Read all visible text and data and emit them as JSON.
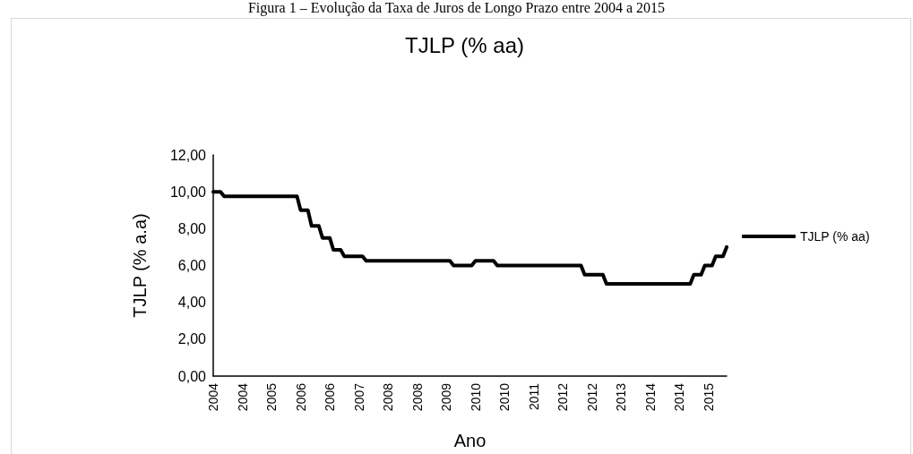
{
  "chart_data": {
    "type": "line",
    "title": "TJLP (% aa)",
    "xlabel": "Ano",
    "ylabel": "TJLP (% a.a)",
    "annotations": [
      "Figura 1 – Evolução da Taxa de Juros de Longo Prazo entre 2004 a 2015"
    ],
    "categories": [
      "2004",
      null,
      null,
      null,
      null,
      null,
      null,
      null,
      "2004",
      null,
      null,
      null,
      null,
      null,
      null,
      null,
      "2005",
      null,
      null,
      null,
      null,
      null,
      null,
      null,
      "2006",
      null,
      null,
      null,
      null,
      null,
      null,
      null,
      "2006",
      null,
      null,
      null,
      null,
      null,
      null,
      null,
      "2007",
      null,
      null,
      null,
      null,
      null,
      null,
      null,
      "2008",
      null,
      null,
      null,
      null,
      null,
      null,
      null,
      "2008",
      null,
      null,
      null,
      null,
      null,
      null,
      null,
      "2009",
      null,
      null,
      null,
      null,
      null,
      null,
      null,
      "2010",
      null,
      null,
      null,
      null,
      null,
      null,
      null,
      "2010",
      null,
      null,
      null,
      null,
      null,
      null,
      null,
      "2011",
      null,
      null,
      null,
      null,
      null,
      null,
      null,
      "2012",
      null,
      null,
      null,
      null,
      null,
      null,
      null,
      "2012",
      null,
      null,
      null,
      null,
      null,
      null,
      null,
      "2013",
      null,
      null,
      null,
      null,
      null,
      null,
      null,
      "2014",
      null,
      null,
      null,
      null,
      null,
      null,
      null,
      "2014",
      null,
      null,
      null,
      null,
      null,
      null,
      null,
      "2015",
      null,
      null,
      null,
      null,
      null
    ],
    "series": [
      {
        "name": "TJLP (% aa)",
        "color": "#000000",
        "values": [
          10.0,
          10.0,
          10.0,
          9.75,
          9.75,
          9.75,
          9.75,
          9.75,
          9.75,
          9.75,
          9.75,
          9.75,
          9.75,
          9.75,
          9.75,
          9.75,
          9.75,
          9.75,
          9.75,
          9.75,
          9.75,
          9.75,
          9.75,
          9.75,
          9.0,
          9.0,
          9.0,
          8.15,
          8.15,
          8.15,
          7.5,
          7.5,
          7.5,
          6.85,
          6.85,
          6.85,
          6.5,
          6.5,
          6.5,
          6.5,
          6.5,
          6.5,
          6.25,
          6.25,
          6.25,
          6.25,
          6.25,
          6.25,
          6.25,
          6.25,
          6.25,
          6.25,
          6.25,
          6.25,
          6.25,
          6.25,
          6.25,
          6.25,
          6.25,
          6.25,
          6.25,
          6.25,
          6.25,
          6.25,
          6.25,
          6.25,
          6.0,
          6.0,
          6.0,
          6.0,
          6.0,
          6.0,
          6.25,
          6.25,
          6.25,
          6.25,
          6.25,
          6.25,
          6.0,
          6.0,
          6.0,
          6.0,
          6.0,
          6.0,
          6.0,
          6.0,
          6.0,
          6.0,
          6.0,
          6.0,
          6.0,
          6.0,
          6.0,
          6.0,
          6.0,
          6.0,
          6.0,
          6.0,
          6.0,
          6.0,
          6.0,
          6.0,
          5.5,
          5.5,
          5.5,
          5.5,
          5.5,
          5.5,
          5.0,
          5.0,
          5.0,
          5.0,
          5.0,
          5.0,
          5.0,
          5.0,
          5.0,
          5.0,
          5.0,
          5.0,
          5.0,
          5.0,
          5.0,
          5.0,
          5.0,
          5.0,
          5.0,
          5.0,
          5.0,
          5.0,
          5.0,
          5.0,
          5.5,
          5.5,
          5.5,
          6.0,
          6.0,
          6.0,
          6.5,
          6.5,
          6.5,
          7.0
        ]
      }
    ],
    "ylim": [
      0,
      12
    ],
    "yticks": [
      {
        "value": 0,
        "label": "0,00"
      },
      {
        "value": 2,
        "label": "2,00"
      },
      {
        "value": 4,
        "label": "4,00"
      },
      {
        "value": 6,
        "label": "6,00"
      },
      {
        "value": 8,
        "label": "8,00"
      },
      {
        "value": 10,
        "label": "10,00"
      },
      {
        "value": 12,
        "label": "12,00"
      }
    ],
    "grid": false,
    "legend": "right",
    "marker": "none",
    "line_style": "solid"
  }
}
